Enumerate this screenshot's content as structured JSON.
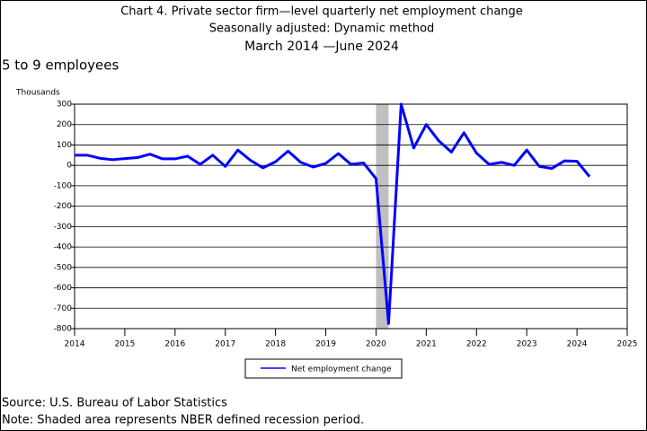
{
  "chart_data": {
    "type": "line",
    "title": "Chart 4. Private sector firm—level quarterly net employment change",
    "subtitle": "Seasonally adjusted: Dynamic method",
    "period": "March 2014 —June 2024",
    "panel_label": "5 to 9 employees",
    "y_axis_label": "Thousands",
    "x": [
      2014,
      2014.25,
      2014.5,
      2014.75,
      2015,
      2015.25,
      2015.5,
      2015.75,
      2016,
      2016.25,
      2016.5,
      2016.75,
      2017,
      2017.25,
      2017.5,
      2017.75,
      2018,
      2018.25,
      2018.5,
      2018.75,
      2019,
      2019.25,
      2019.5,
      2019.75,
      2020,
      2020.25,
      2020.5,
      2020.75,
      2021,
      2021.25,
      2021.5,
      2021.75,
      2022,
      2022.25,
      2022.5,
      2022.75,
      2023,
      2023.25,
      2023.5,
      2023.75,
      2024,
      2024.25
    ],
    "series": [
      {
        "name": "Net employment change",
        "color": "#0000ff",
        "values": [
          50,
          50,
          35,
          28,
          33,
          38,
          55,
          32,
          32,
          45,
          5,
          50,
          -5,
          75,
          25,
          -12,
          18,
          70,
          15,
          -8,
          10,
          58,
          5,
          12,
          -65,
          -775,
          300,
          85,
          200,
          120,
          65,
          160,
          60,
          5,
          15,
          0,
          75,
          -5,
          -15,
          22,
          20,
          -55
        ]
      }
    ],
    "recession": [
      2020,
      2020.25
    ],
    "recession_color": "#c0c0c0",
    "xlim": [
      2014,
      2025
    ],
    "xticks": [
      2014,
      2015,
      2016,
      2017,
      2018,
      2019,
      2020,
      2021,
      2022,
      2023,
      2024,
      2025
    ],
    "ylim": [
      -800,
      300
    ],
    "yticks": [
      -800,
      -700,
      -600,
      -500,
      -400,
      -300,
      -200,
      -100,
      0,
      100,
      200,
      300
    ],
    "grid": true,
    "source": "Source: U.S. Bureau of Labor Statistics",
    "note": "Note: Shaded area represents NBER defined recession period."
  }
}
